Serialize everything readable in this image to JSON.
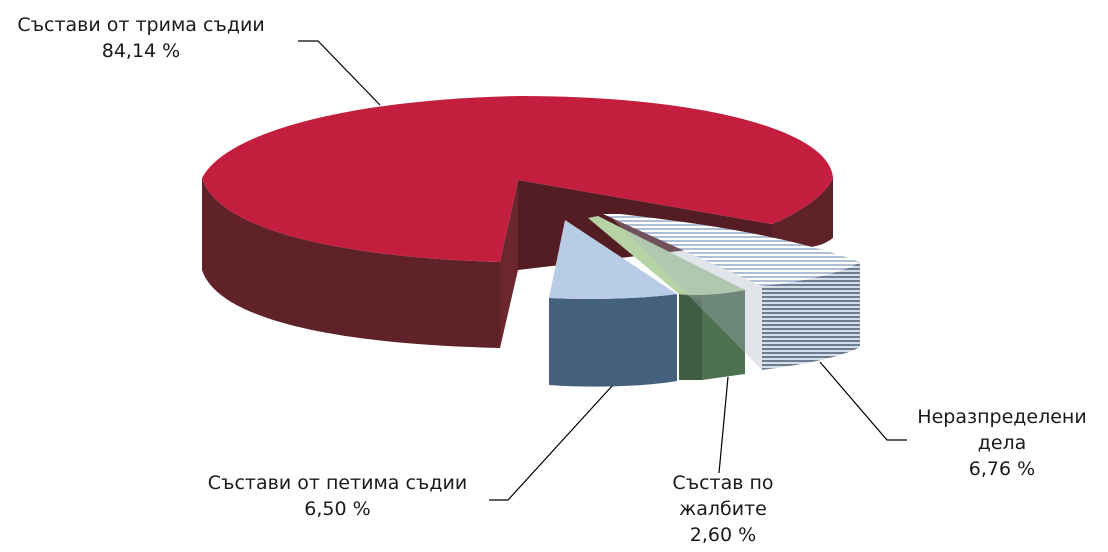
{
  "chart_data": {
    "type": "pie",
    "title": "",
    "slices": [
      {
        "label": "Състави от трима съдии",
        "value": 84.14,
        "value_label": "84,14 %",
        "color": "#c41e3f",
        "side_color": "#5e2228"
      },
      {
        "label": "Състави от петима съдии",
        "value": 6.5,
        "value_label": "6,50 %",
        "color": "#b8cce6",
        "side_color": "#44607c"
      },
      {
        "label": "Състав по жалбите",
        "value": 2.6,
        "value_label": "2,60 %",
        "color": "#b6d3a6",
        "side_color": "#4e7150"
      },
      {
        "label": "Неразпределени дела",
        "value": 6.76,
        "value_label": "6,76 %",
        "color": "#dde6f2",
        "side_color": "#6c7d92"
      }
    ],
    "label_lines": {
      "s0": [
        "Състави от трима съдии",
        "84,14 %"
      ],
      "s1": [
        "Състави от петима съдии",
        "6,50 %"
      ],
      "s2": [
        "Състав по",
        "жалбите",
        "2,60 %"
      ],
      "s3": [
        "Неразпределени",
        "дела",
        "6,76 %"
      ]
    }
  }
}
